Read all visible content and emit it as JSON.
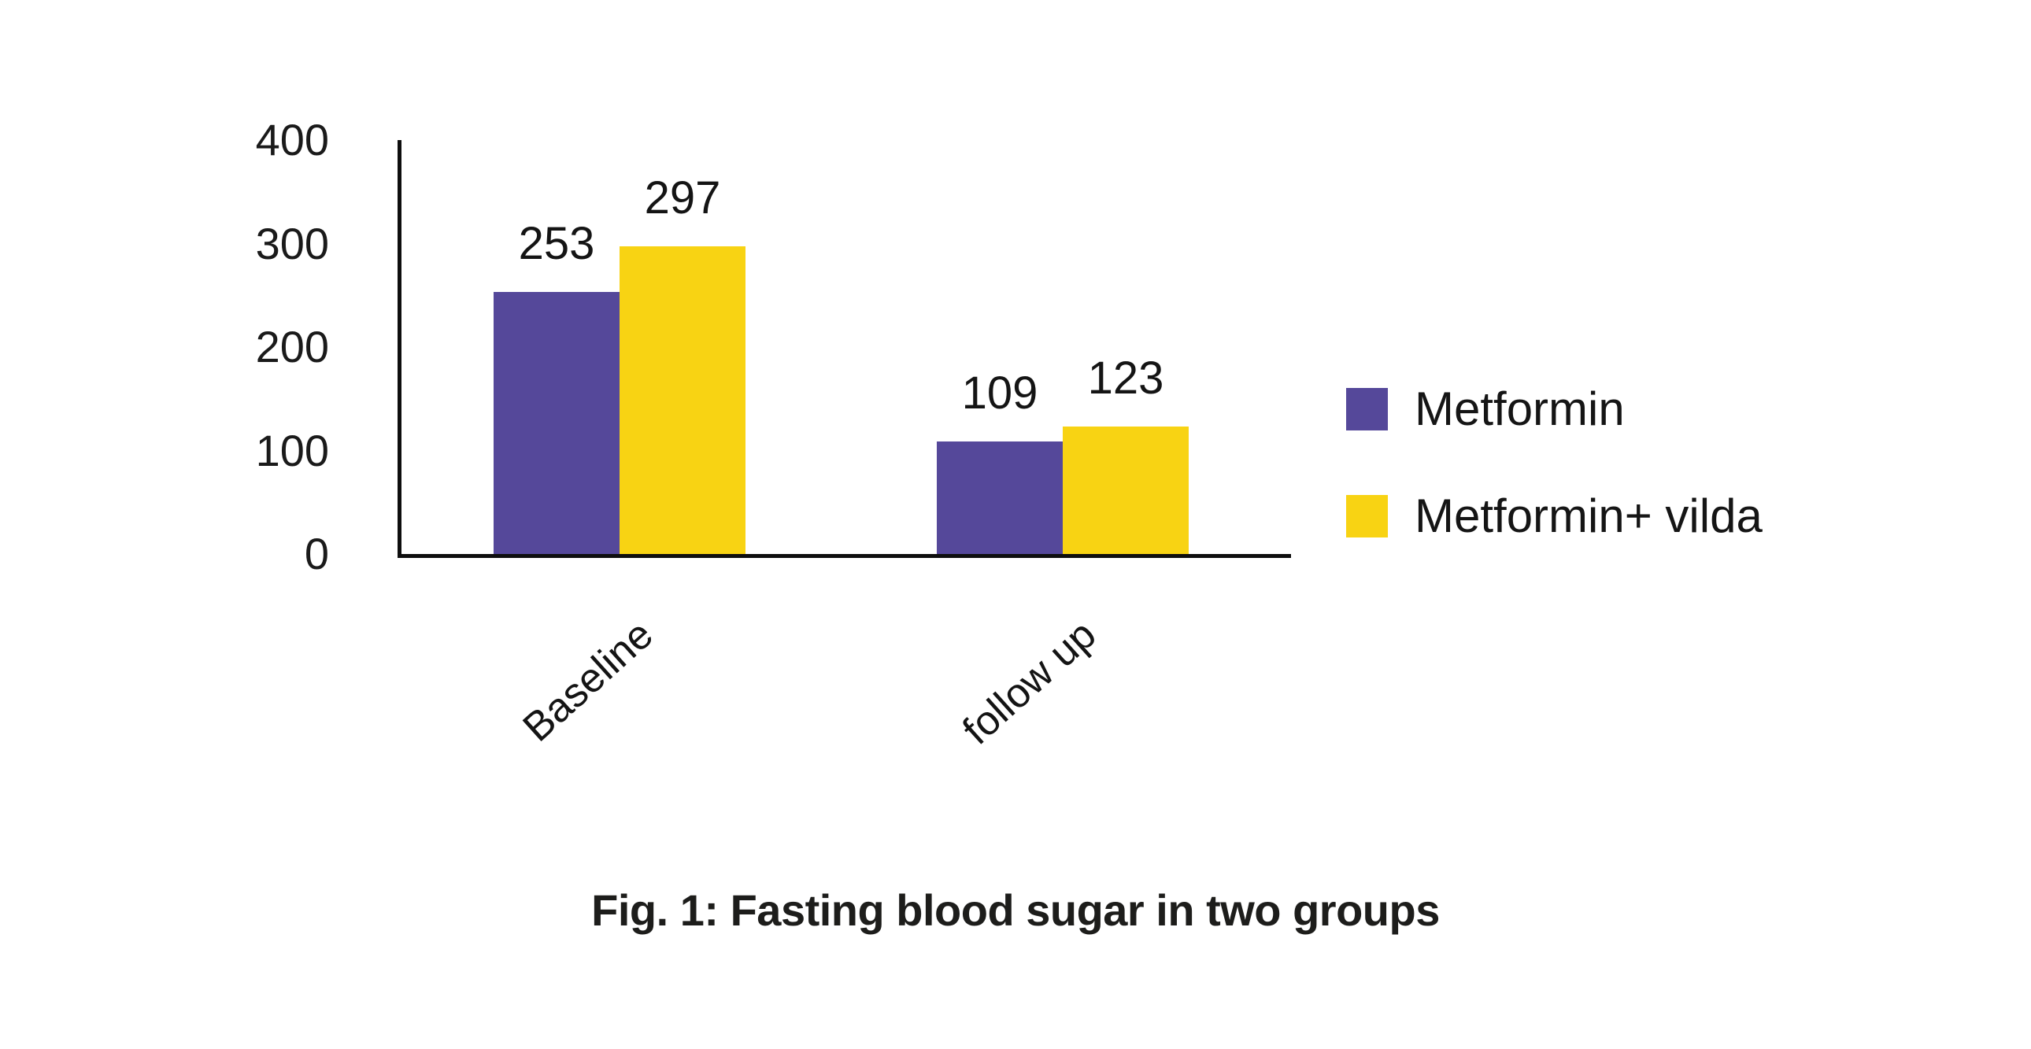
{
  "caption": {
    "text": "Fig. 1: Fasting blood sugar in two groups"
  },
  "chart_data": {
    "type": "bar",
    "categories": [
      "Baseline",
      "follow up"
    ],
    "series": [
      {
        "name": "Metformin",
        "color": "#55489a",
        "values": [
          253,
          109
        ]
      },
      {
        "name": "Metformin+ vilda",
        "color": "#f8d313",
        "values": [
          297,
          123
        ]
      }
    ],
    "y_ticks": [
      0,
      100,
      200,
      300,
      400
    ],
    "ylim": [
      0,
      400
    ],
    "xlabel": "",
    "ylabel": "",
    "title": "",
    "grid": false,
    "legend_position": "right",
    "value_labels_shown": true,
    "axis_color": "#0e0e0e",
    "text_color": "#141414"
  }
}
